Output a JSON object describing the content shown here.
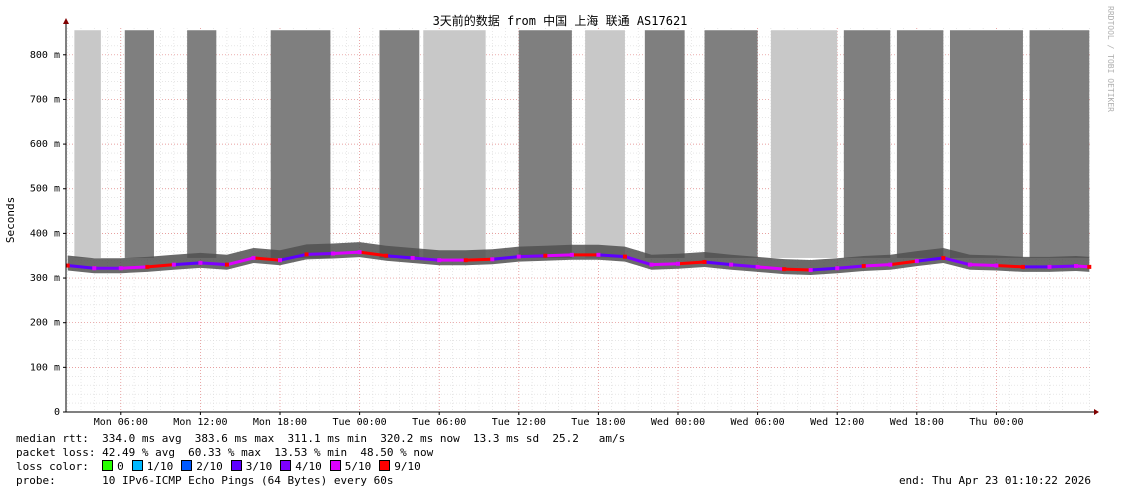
{
  "chart_data": {
    "type": "area",
    "title": "3天前的数据 from 中国 上海 联通 AS17621",
    "ylabel": "Seconds",
    "watermark": "RRDTOOL / TOBI OETIKER",
    "ylim": [
      0,
      860
    ],
    "x_ticks": [
      "Mon 06:00",
      "Mon 12:00",
      "Mon 18:00",
      "Tue 00:00",
      "Tue 06:00",
      "Tue 12:00",
      "Tue 18:00",
      "Wed 00:00",
      "Wed 06:00",
      "Wed 12:00",
      "Wed 18:00",
      "Thu 00:00"
    ],
    "y_ticks": [
      {
        "value": 0,
        "label": "0"
      },
      {
        "value": 100,
        "label": "100 m"
      },
      {
        "value": 200,
        "label": "200 m"
      },
      {
        "value": 300,
        "label": "300 m"
      },
      {
        "value": 400,
        "label": "400 m"
      },
      {
        "value": 500,
        "label": "500 m"
      },
      {
        "value": 600,
        "label": "600 m"
      },
      {
        "value": 700,
        "label": "700 m"
      },
      {
        "value": 800,
        "label": "800 m"
      }
    ],
    "x_start_hours": -4.13,
    "x_end_hours": 73.13,
    "grid": true,
    "series": [
      {
        "name": "median rtt",
        "x_hours": [
          -4,
          -2,
          0,
          2,
          4,
          6,
          8,
          10,
          12,
          14,
          16,
          18,
          20,
          22,
          24,
          26,
          28,
          30,
          32,
          34,
          36,
          38,
          40,
          42,
          44,
          46,
          48,
          50,
          52,
          54,
          56,
          58,
          60,
          62,
          64,
          66,
          68,
          70,
          72,
          73
        ],
        "values_ms": [
          328,
          322,
          322,
          325,
          330,
          334,
          330,
          345,
          340,
          353,
          355,
          358,
          350,
          345,
          340,
          340,
          342,
          348,
          350,
          352,
          352,
          348,
          330,
          332,
          336,
          330,
          325,
          320,
          318,
          322,
          327,
          330,
          338,
          345,
          330,
          328,
          325,
          325,
          327,
          325
        ]
      }
    ],
    "loss_bars": [
      {
        "start_hours": -3.5,
        "end_hours": -1.5,
        "level": "light"
      },
      {
        "start_hours": 0.3,
        "end_hours": 2.5,
        "level": "dark"
      },
      {
        "start_hours": 5.0,
        "end_hours": 7.2,
        "level": "dark"
      },
      {
        "start_hours": 11.3,
        "end_hours": 15.8,
        "level": "dark"
      },
      {
        "start_hours": 19.5,
        "end_hours": 22.5,
        "level": "dark"
      },
      {
        "start_hours": 22.8,
        "end_hours": 27.5,
        "level": "light"
      },
      {
        "start_hours": 30.0,
        "end_hours": 34.0,
        "level": "dark"
      },
      {
        "start_hours": 35.0,
        "end_hours": 38.0,
        "level": "light"
      },
      {
        "start_hours": 39.5,
        "end_hours": 42.5,
        "level": "dark"
      },
      {
        "start_hours": 44.0,
        "end_hours": 48.0,
        "level": "dark"
      },
      {
        "start_hours": 49.0,
        "end_hours": 54.0,
        "level": "light"
      },
      {
        "start_hours": 54.5,
        "end_hours": 58.0,
        "level": "dark"
      },
      {
        "start_hours": 58.5,
        "end_hours": 62.0,
        "level": "dark"
      },
      {
        "start_hours": 62.5,
        "end_hours": 68.0,
        "level": "dark"
      },
      {
        "start_hours": 68.5,
        "end_hours": 73.0,
        "level": "dark"
      }
    ],
    "colors": {
      "grid_major": "#e08080",
      "grid_minor": "#d8d8d8",
      "loss_light": "#c8c8c8",
      "loss_dark": "#7f7f7f",
      "smoke": "#505050",
      "axis_arrow": "#800000"
    }
  },
  "stats": {
    "median_rtt": "median rtt:  334.0 ms avg  383.6 ms max  311.1 ms min  320.2 ms now  13.3 ms sd  25.2   am/s",
    "packet_loss": "packet loss: 42.49 % avg  60.33 % max  13.53 % min  48.50 % now",
    "loss_color_label": "loss color:",
    "probe": "probe:       10 IPv6-ICMP Echo Pings (64 Bytes) every 60s",
    "end": "end: Thu Apr 23 01:10:22 2026"
  },
  "loss_legend": [
    {
      "label": "0",
      "color": "#26ff00"
    },
    {
      "label": "1/10",
      "color": "#00b8ff"
    },
    {
      "label": "2/10",
      "color": "#0059ff"
    },
    {
      "label": "3/10",
      "color": "#5e00ff"
    },
    {
      "label": "4/10",
      "color": "#7e00ff"
    },
    {
      "label": "5/10",
      "color": "#dd00ff"
    },
    {
      "label": "9/10",
      "color": "#ff0000"
    }
  ]
}
